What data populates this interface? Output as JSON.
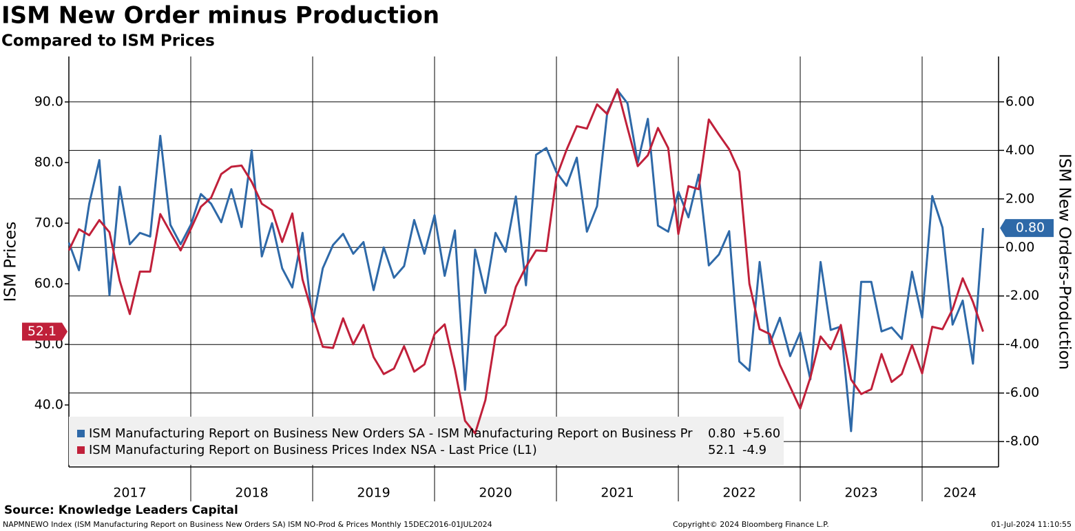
{
  "chart_data": {
    "type": "line",
    "title": "ISM New Order minus Production",
    "subtitle": "Compared to ISM Prices",
    "y_label": "ISM Prices",
    "y2_label": "ISM New Orders-Production",
    "source": "Source: Knowledge Leaders Capital",
    "footer_left": "NAPMNEWO Index (ISM Manufacturing Report on Business New Orders SA) ISM NO-Prod & Prices  Monthly 15DEC2016-01JUL2024",
    "copyright": "Copyright© 2024 Bloomberg Finance L.P.",
    "timestamp": "01-Jul-2024 11:10:55",
    "grid": true,
    "legend": "bottom-left",
    "xlim": [
      2017,
      2024.627
    ],
    "xticks": [
      {
        "value": 2017.5,
        "label": "2017"
      },
      {
        "value": 2018.5,
        "label": "2018"
      },
      {
        "value": 2019.5,
        "label": "2019"
      },
      {
        "value": 2020.5,
        "label": "2020"
      },
      {
        "value": 2021.5,
        "label": "2021"
      },
      {
        "value": 2022.5,
        "label": "2022"
      },
      {
        "value": 2023.5,
        "label": "2023"
      },
      {
        "value": 2024.31,
        "label": "2024"
      }
    ],
    "ylim": [
      30,
      97.5
    ],
    "yticks": [
      {
        "value": 40,
        "label": "40.0"
      },
      {
        "value": 50,
        "label": "50.0"
      },
      {
        "value": 60,
        "label": "60.0"
      },
      {
        "value": 70,
        "label": "70.0"
      },
      {
        "value": 80,
        "label": "80.0"
      },
      {
        "value": 90,
        "label": "90.0"
      }
    ],
    "y2lim": [
      -8.99,
      7.87
    ],
    "y2ticks": [
      {
        "value": -8,
        "label": "-8.00"
      },
      {
        "value": -6,
        "label": "-6.00"
      },
      {
        "value": -4,
        "label": "-4.00"
      },
      {
        "value": -2,
        "label": "-2.00"
      },
      {
        "value": 0,
        "label": "0.00"
      },
      {
        "value": 2,
        "label": "2.00"
      },
      {
        "value": 4,
        "label": "4.00"
      },
      {
        "value": 6,
        "label": "6.00"
      }
    ],
    "x": [
      2017,
      2017.083,
      2017.167,
      2017.25,
      2017.333,
      2017.417,
      2017.5,
      2017.583,
      2017.667,
      2017.75,
      2017.833,
      2017.917,
      2018,
      2018.083,
      2018.167,
      2018.25,
      2018.333,
      2018.417,
      2018.5,
      2018.583,
      2018.667,
      2018.75,
      2018.833,
      2018.917,
      2019,
      2019.083,
      2019.167,
      2019.25,
      2019.333,
      2019.417,
      2019.5,
      2019.583,
      2019.667,
      2019.75,
      2019.833,
      2019.917,
      2020,
      2020.083,
      2020.167,
      2020.25,
      2020.333,
      2020.417,
      2020.5,
      2020.583,
      2020.667,
      2020.75,
      2020.833,
      2020.917,
      2021,
      2021.083,
      2021.167,
      2021.25,
      2021.333,
      2021.417,
      2021.5,
      2021.583,
      2021.667,
      2021.75,
      2021.833,
      2021.917,
      2022,
      2022.083,
      2022.167,
      2022.25,
      2022.333,
      2022.417,
      2022.5,
      2022.583,
      2022.667,
      2022.75,
      2022.833,
      2022.917,
      2023,
      2023.083,
      2023.167,
      2023.25,
      2023.333,
      2023.417,
      2023.5,
      2023.583,
      2023.667,
      2023.75,
      2023.833,
      2023.917,
      2024,
      2024.083,
      2024.167,
      2024.25,
      2024.333,
      2024.417,
      2024.5
    ],
    "series": [
      {
        "name": "ISM Manufacturing Report on Business New Orders SA - ISM Manufacturing Report on Business Pr",
        "color": "#2e69a8",
        "axis": "y2",
        "last_label": "0.80",
        "change_label": "+5.60",
        "values": [
          0.2,
          -0.94,
          1.8,
          3.6,
          -1.96,
          2.5,
          0.13,
          0.6,
          0.45,
          4.6,
          0.93,
          0.13,
          0.93,
          2.2,
          1.8,
          1.04,
          2.4,
          0.84,
          4.0,
          -0.37,
          1.0,
          -0.86,
          -1.65,
          0.6,
          -3.07,
          -0.86,
          0.1,
          0.56,
          -0.26,
          0.22,
          -1.76,
          0.0,
          -1.25,
          -0.77,
          1.13,
          -0.26,
          1.33,
          -1.17,
          0.7,
          -5.87,
          -0.09,
          -1.88,
          0.6,
          -0.18,
          2.1,
          -1.56,
          3.82,
          4.1,
          3.1,
          2.54,
          3.7,
          0.65,
          1.7,
          5.57,
          6.48,
          5.94,
          3.5,
          5.3,
          0.9,
          0.65,
          2.3,
          1.24,
          3.0,
          -0.74,
          -0.29,
          0.67,
          -4.7,
          -5.08,
          -0.6,
          -3.97,
          -2.9,
          -4.48,
          -3.5,
          -5.44,
          -0.6,
          -3.4,
          -3.26,
          -7.57,
          -1.42,
          -1.42,
          -3.46,
          -3.3,
          -3.77,
          -1.0,
          -2.9,
          2.12,
          0.82,
          -3.18,
          -2.19,
          -4.79,
          0.8
        ]
      },
      {
        "name": "ISM Manufacturing Report on Business Prices Index NSA - Last Price (L1)",
        "color": "#c0203a",
        "axis": "y",
        "last_label": "52.1",
        "change_label": "-4.9",
        "values": [
          65.5,
          69.0,
          68.0,
          70.5,
          68.5,
          60.5,
          55.0,
          62.0,
          62.0,
          71.5,
          68.5,
          65.5,
          69.0,
          72.7,
          74.2,
          78.1,
          79.3,
          79.5,
          76.8,
          73.2,
          72.1,
          66.9,
          71.6,
          60.7,
          54.9,
          49.6,
          49.4,
          54.3,
          50.0,
          53.2,
          47.9,
          45.1,
          46.0,
          49.7,
          45.5,
          46.7,
          51.7,
          53.3,
          45.9,
          37.4,
          35.3,
          40.8,
          51.3,
          53.2,
          59.5,
          62.8,
          65.5,
          65.4,
          77.6,
          82.1,
          86.0,
          85.6,
          89.6,
          88.0,
          92.1,
          85.7,
          79.4,
          81.2,
          85.7,
          82.4,
          68.2,
          76.1,
          75.6,
          87.1,
          84.6,
          82.2,
          78.5,
          60.0,
          52.5,
          51.7,
          46.6,
          43.0,
          39.4,
          44.5,
          51.3,
          49.2,
          53.2,
          44.2,
          41.8,
          42.6,
          48.4,
          43.8,
          45.1,
          49.9,
          45.2,
          52.9,
          52.5,
          55.8,
          60.9,
          57.0,
          52.1
        ]
      }
    ]
  }
}
